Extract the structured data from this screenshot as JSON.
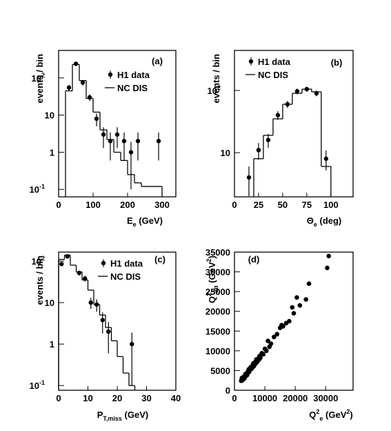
{
  "chart_data": [
    {
      "type": "histogram",
      "panel_label": "(a)",
      "ylabel": [
        {
          "text": "events / bin"
        }
      ],
      "xlabel": [
        {
          "text": "E"
        },
        {
          "text": "e",
          "script": "sub"
        },
        {
          "text": " (GeV)"
        }
      ],
      "log_y": true,
      "xlim": [
        0,
        340
      ],
      "ylim": [
        0.063,
        550
      ],
      "xticks": [
        0,
        100,
        200,
        300
      ],
      "yticks": [
        {
          "value": 0.1,
          "label": "10",
          "sup": "-1"
        },
        1,
        10,
        {
          "value": 100,
          "label": "10",
          "sup": "2"
        }
      ],
      "data": {
        "name": "H1 data",
        "x": [
          30,
          50,
          70,
          90,
          110,
          130,
          150,
          170,
          190,
          210,
          230,
          290
        ],
        "values": [
          55,
          240,
          75,
          30,
          8,
          3,
          2,
          3,
          2,
          1,
          2,
          2
        ],
        "errors": [
          10,
          30,
          12,
          6,
          3,
          1.7,
          1.4,
          1.7,
          1.4,
          0.9,
          1.4,
          1.4
        ]
      },
      "mc": {
        "name": "NC DIS",
        "bins": [
          20,
          40,
          60,
          80,
          100,
          120,
          140,
          160,
          180,
          200,
          220,
          240,
          300
        ],
        "counts": [
          45,
          230,
          85,
          28,
          12,
          4,
          2.2,
          1,
          0.6,
          0.25,
          0.15,
          0.12
        ]
      }
    },
    {
      "type": "histogram",
      "panel_label": "(b)",
      "ylabel": [
        {
          "text": "events / bin"
        }
      ],
      "xlabel": [
        {
          "text": "Θ"
        },
        {
          "text": "e",
          "script": "sub"
        },
        {
          "text": " (deg)"
        }
      ],
      "log_y": true,
      "xlim": [
        0,
        123
      ],
      "ylim": [
        1.95,
        440
      ],
      "xticks": [
        0,
        25,
        50,
        75,
        100
      ],
      "yticks": [
        10,
        {
          "value": 100,
          "label": "10",
          "sup": "2"
        }
      ],
      "data": {
        "name": "H1 data",
        "x": [
          15,
          25,
          35,
          45,
          55,
          65,
          75,
          85,
          95
        ],
        "values": [
          4,
          11,
          16,
          40,
          60,
          97,
          105,
          90,
          8
        ],
        "errors": [
          2,
          3.3,
          4,
          6.3,
          7.7,
          10,
          10,
          9.5,
          2.8
        ]
      },
      "mc": {
        "name": "NC DIS",
        "bins": [
          20,
          30,
          40,
          50,
          60,
          70,
          80,
          90,
          100
        ],
        "counts": [
          8,
          19,
          35,
          60,
          90,
          105,
          95,
          6
        ]
      }
    },
    {
      "type": "histogram",
      "panel_label": "(c)",
      "ylabel": [
        {
          "text": "events / bin"
        }
      ],
      "xlabel": [
        {
          "text": "P"
        },
        {
          "text": "T,miss",
          "script": "sub"
        },
        {
          "text": "  (GeV)"
        }
      ],
      "log_y": true,
      "xlim": [
        0,
        40
      ],
      "ylim": [
        0.077,
        165
      ],
      "xticks": [
        0,
        10,
        20,
        30,
        40
      ],
      "yticks": [
        {
          "value": 0.1,
          "label": "10",
          "sup": "-1"
        },
        1,
        10,
        {
          "value": 100,
          "label": "10",
          "sup": "2"
        }
      ],
      "data": {
        "name": "H1 data",
        "x": [
          1,
          3,
          7,
          9,
          11,
          13,
          15,
          17,
          25
        ],
        "values": [
          85,
          130,
          52,
          38,
          10,
          9,
          3.8,
          2,
          1
        ],
        "errors": [
          9,
          11,
          7,
          6,
          3,
          3,
          2,
          1.4,
          0.9
        ]
      },
      "mc": {
        "name": "NC DIS",
        "bins": [
          0,
          2,
          4,
          6,
          8,
          10,
          12,
          14,
          16,
          18,
          20,
          22,
          24,
          26
        ],
        "counts": [
          110,
          140,
          80,
          55,
          35,
          20,
          9,
          5,
          2.5,
          1.2,
          0.5,
          0.2,
          0.1
        ]
      }
    },
    {
      "type": "scatter",
      "panel_label": "(d)",
      "ylabel": [
        {
          "text": "Q"
        },
        {
          "text": "2",
          "script": "sup"
        },
        {
          "text": "2α",
          "script": "sub"
        },
        {
          "text": "  (GeV"
        },
        {
          "text": "2",
          "script": "sup"
        },
        {
          "text": ")"
        }
      ],
      "xlabel": [
        {
          "text": "Q"
        },
        {
          "text": "2",
          "script": "sup"
        },
        {
          "text": "e",
          "script": "sub"
        },
        {
          "text": " (GeV"
        },
        {
          "text": "2",
          "script": "sup"
        },
        {
          "text": ")"
        }
      ],
      "log_y": false,
      "xlim": [
        0,
        39000
      ],
      "ylim": [
        0,
        35000
      ],
      "xticks": [
        0,
        10000,
        20000,
        30000
      ],
      "yticks": [
        0,
        5000,
        10000,
        15000,
        20000,
        25000,
        30000,
        35000
      ],
      "x": [
        2200,
        2400,
        2500,
        2600,
        2700,
        2900,
        3000,
        3200,
        3300,
        3500,
        3600,
        3800,
        4000,
        4100,
        4200,
        4400,
        4500,
        4700,
        4800,
        5000,
        5300,
        5500,
        5600,
        6000,
        6200,
        6300,
        6600,
        6800,
        7000,
        7200,
        7400,
        7800,
        8000,
        8200,
        8500,
        8800,
        9000,
        9500,
        10000,
        10500,
        11000,
        11500,
        12000,
        13000,
        14000,
        15000,
        15500,
        16000,
        17000,
        18000,
        19000,
        19500,
        20500,
        21500,
        23500,
        24500,
        30500,
        31000
      ],
      "values": [
        2400,
        3100,
        2600,
        2500,
        3000,
        3300,
        2900,
        3500,
        3000,
        3400,
        4100,
        3900,
        4300,
        3800,
        4000,
        4400,
        4800,
        5300,
        4600,
        5200,
        5800,
        5900,
        5400,
        6300,
        6800,
        6000,
        7000,
        6600,
        7300,
        7800,
        7100,
        8000,
        7700,
        8600,
        8200,
        9000,
        9400,
        9100,
        10500,
        10000,
        12500,
        11000,
        11800,
        13500,
        14200,
        15800,
        16500,
        16200,
        17000,
        17500,
        21000,
        19500,
        23500,
        21500,
        23000,
        27000,
        31000,
        34000
      ]
    }
  ]
}
